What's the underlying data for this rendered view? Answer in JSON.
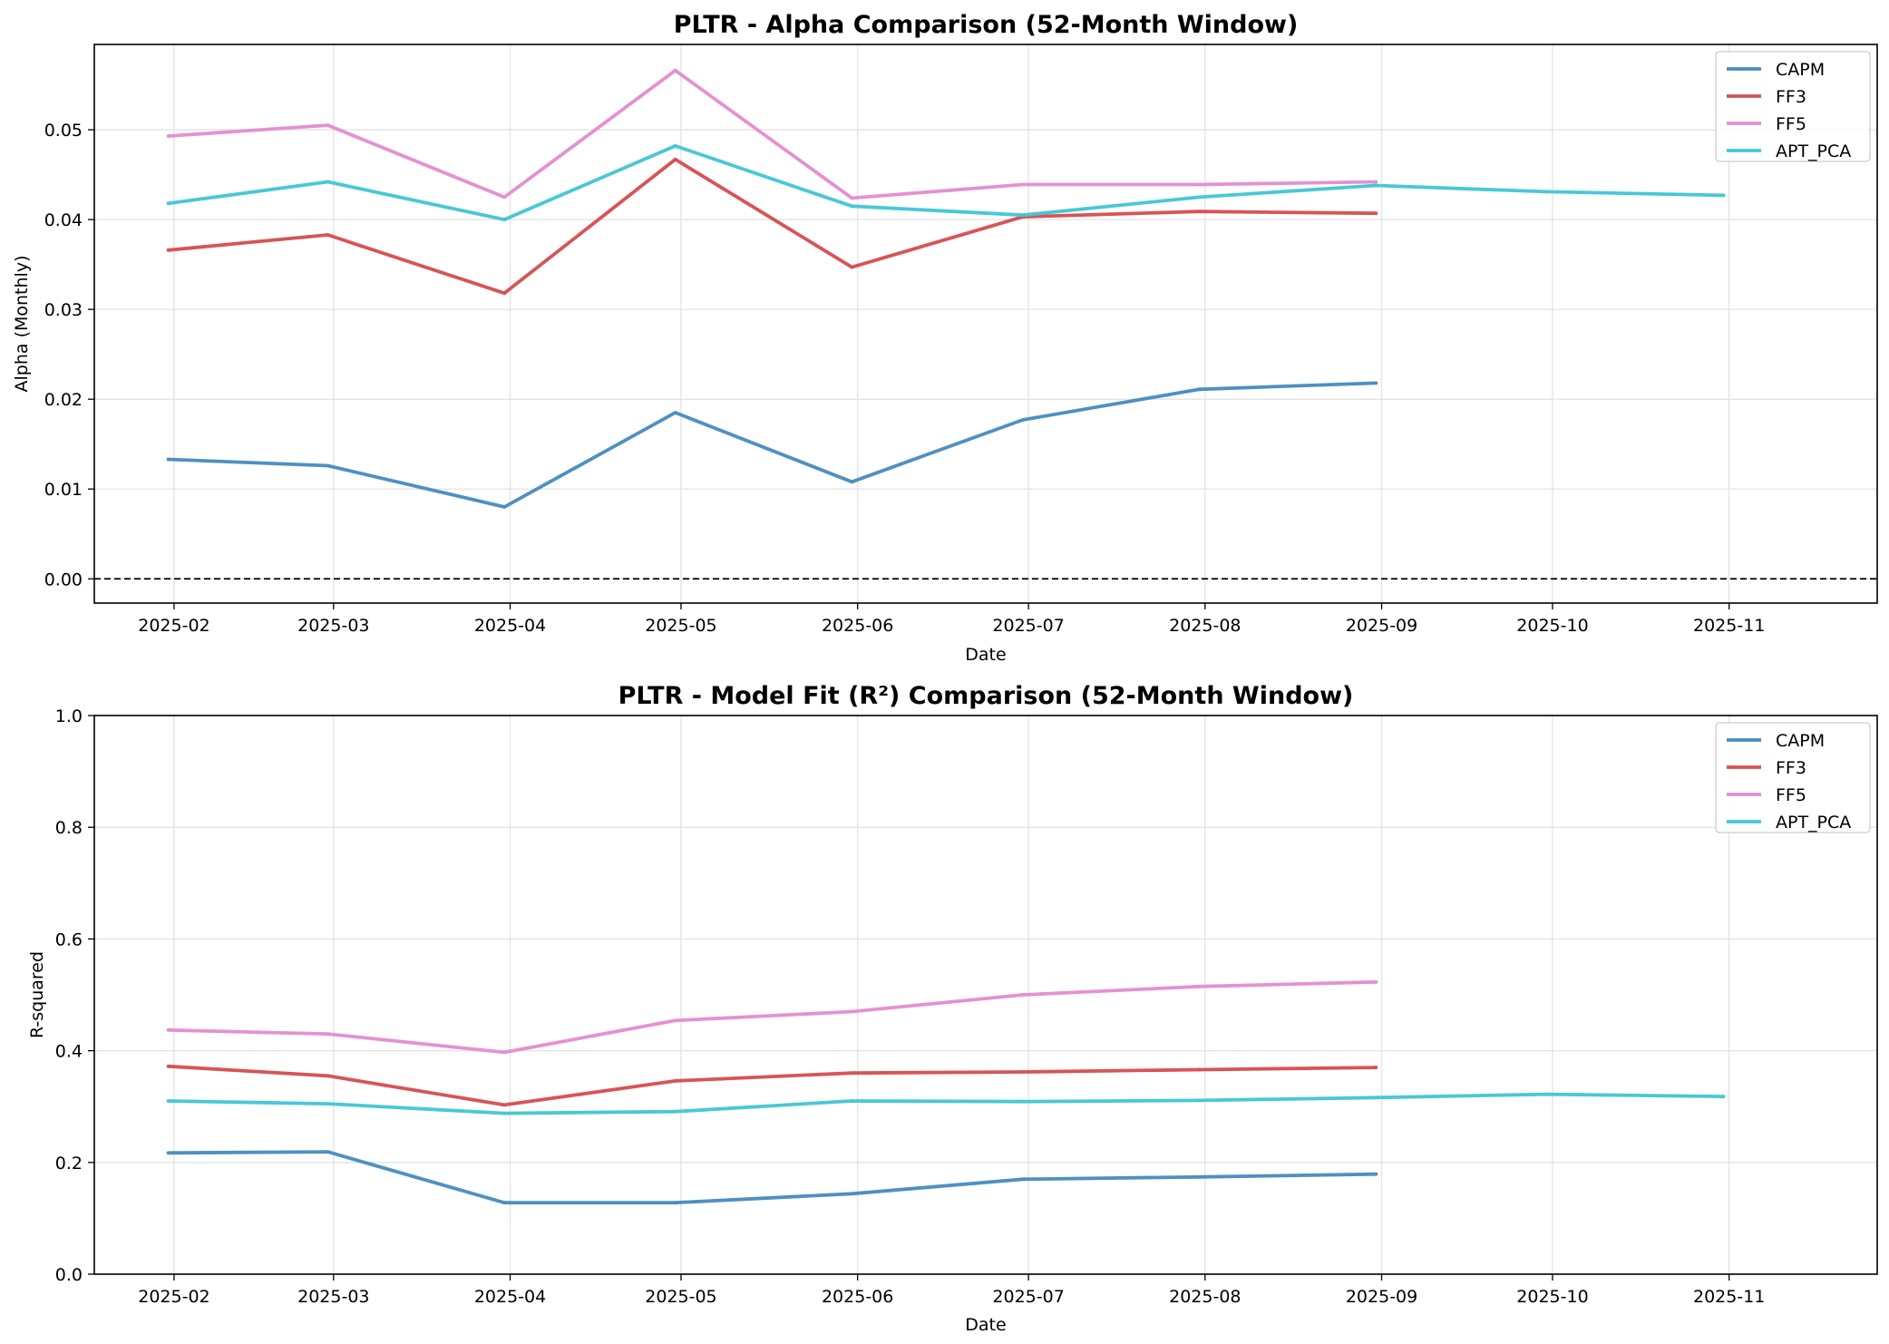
{
  "chart_data": [
    {
      "type": "line",
      "title": "PLTR - Alpha Comparison (52-Month Window)",
      "xlabel": "Date",
      "ylabel": "Alpha (Monthly)",
      "x_ticks": [
        "2025-02",
        "2025-03",
        "2025-04",
        "2025-05",
        "2025-06",
        "2025-07",
        "2025-08",
        "2025-09",
        "2025-10",
        "2025-11"
      ],
      "y_ticks": [
        "0.00",
        "0.01",
        "0.02",
        "0.03",
        "0.04",
        "0.05"
      ],
      "xlim": [
        "2025-01-18",
        "2025-11-27"
      ],
      "ylim": [
        -0.0027,
        0.0595
      ],
      "grid": true,
      "legend_position": "upper right",
      "reference_line": {
        "y": 0,
        "style": "dashed",
        "color": "#000000"
      },
      "series": [
        {
          "name": "CAPM",
          "color": "#4a8ec0",
          "x": [
            "2025-01-31",
            "2025-02-28",
            "2025-03-31",
            "2025-04-30",
            "2025-05-31",
            "2025-06-30",
            "2025-07-31",
            "2025-08-31"
          ],
          "y": [
            0.0133,
            0.0126,
            0.008,
            0.0185,
            0.0108,
            0.0177,
            0.0211,
            0.0218
          ]
        },
        {
          "name": "FF3",
          "color": "#d75152",
          "x": [
            "2025-01-31",
            "2025-02-28",
            "2025-03-31",
            "2025-04-30",
            "2025-05-31",
            "2025-06-30",
            "2025-07-31",
            "2025-08-31"
          ],
          "y": [
            0.0366,
            0.0383,
            0.0318,
            0.0467,
            0.0347,
            0.0403,
            0.0409,
            0.0407
          ]
        },
        {
          "name": "FF5",
          "color": "#e38fd0",
          "x": [
            "2025-01-31",
            "2025-02-28",
            "2025-03-31",
            "2025-04-30",
            "2025-05-31",
            "2025-06-30",
            "2025-07-31",
            "2025-08-31"
          ],
          "y": [
            0.0493,
            0.0505,
            0.0425,
            0.0566,
            0.0424,
            0.0439,
            0.0439,
            0.0442
          ]
        },
        {
          "name": "APT_PCA",
          "color": "#44c7d4",
          "x": [
            "2025-01-31",
            "2025-02-28",
            "2025-03-31",
            "2025-04-30",
            "2025-05-31",
            "2025-06-30",
            "2025-07-31",
            "2025-08-31",
            "2025-09-30",
            "2025-10-31"
          ],
          "y": [
            0.0418,
            0.0442,
            0.04,
            0.0482,
            0.0415,
            0.0405,
            0.0425,
            0.0438,
            0.0431,
            0.0427
          ]
        }
      ]
    },
    {
      "type": "line",
      "title": "PLTR - Model Fit (R²) Comparison (52-Month Window)",
      "xlabel": "Date",
      "ylabel": "R-squared",
      "x_ticks": [
        "2025-02",
        "2025-03",
        "2025-04",
        "2025-05",
        "2025-06",
        "2025-07",
        "2025-08",
        "2025-09",
        "2025-10",
        "2025-11"
      ],
      "y_ticks": [
        "0.0",
        "0.2",
        "0.4",
        "0.6",
        "0.8",
        "1.0"
      ],
      "xlim": [
        "2025-01-18",
        "2025-11-27"
      ],
      "ylim": [
        0,
        1
      ],
      "grid": true,
      "legend_position": "upper right",
      "series": [
        {
          "name": "CAPM",
          "color": "#4a8ec0",
          "x": [
            "2025-01-31",
            "2025-02-28",
            "2025-03-31",
            "2025-04-30",
            "2025-05-31",
            "2025-06-30",
            "2025-07-31",
            "2025-08-31"
          ],
          "y": [
            0.217,
            0.219,
            0.128,
            0.128,
            0.144,
            0.17,
            0.174,
            0.179
          ]
        },
        {
          "name": "FF3",
          "color": "#d75152",
          "x": [
            "2025-01-31",
            "2025-02-28",
            "2025-03-31",
            "2025-04-30",
            "2025-05-31",
            "2025-06-30",
            "2025-07-31",
            "2025-08-31"
          ],
          "y": [
            0.372,
            0.355,
            0.303,
            0.346,
            0.36,
            0.362,
            0.366,
            0.37
          ]
        },
        {
          "name": "FF5",
          "color": "#e38fd0",
          "x": [
            "2025-01-31",
            "2025-02-28",
            "2025-03-31",
            "2025-04-30",
            "2025-05-31",
            "2025-06-30",
            "2025-07-31",
            "2025-08-31"
          ],
          "y": [
            0.437,
            0.43,
            0.397,
            0.454,
            0.47,
            0.5,
            0.515,
            0.523
          ]
        },
        {
          "name": "APT_PCA",
          "color": "#44c7d4",
          "x": [
            "2025-01-31",
            "2025-02-28",
            "2025-03-31",
            "2025-04-30",
            "2025-05-31",
            "2025-06-30",
            "2025-07-31",
            "2025-08-31",
            "2025-09-30",
            "2025-10-31"
          ],
          "y": [
            0.31,
            0.305,
            0.288,
            0.291,
            0.31,
            0.309,
            0.311,
            0.316,
            0.322,
            0.318
          ]
        }
      ]
    }
  ]
}
